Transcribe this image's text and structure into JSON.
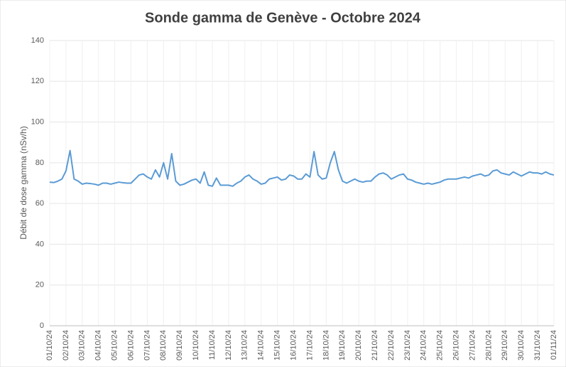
{
  "chart_data": {
    "type": "line",
    "title": "Sonde gamma de Genève - Octobre 2024",
    "y_label": "Débit de dose gamma (nSv/h)",
    "categories": [
      "01/10/24",
      null,
      null,
      null,
      "02/10/24",
      null,
      null,
      null,
      "03/10/24",
      null,
      null,
      null,
      "04/10/24",
      null,
      null,
      null,
      "05/10/24",
      null,
      null,
      null,
      "06/10/24",
      null,
      null,
      null,
      "07/10/24",
      null,
      null,
      null,
      "08/10/24",
      null,
      null,
      null,
      "09/10/24",
      null,
      null,
      null,
      "10/10/24",
      null,
      null,
      null,
      "11/10/24",
      null,
      null,
      null,
      "12/10/24",
      null,
      null,
      null,
      "13/10/24",
      null,
      null,
      null,
      "14/10/24",
      null,
      null,
      null,
      "15/10/24",
      null,
      null,
      null,
      "16/10/24",
      null,
      null,
      null,
      "17/10/24",
      null,
      null,
      null,
      "18/10/24",
      null,
      null,
      null,
      "19/10/24",
      null,
      null,
      null,
      "20/10/24",
      null,
      null,
      null,
      "21/10/24",
      null,
      null,
      null,
      "22/10/24",
      null,
      null,
      null,
      "23/10/24",
      null,
      null,
      null,
      "24/10/24",
      null,
      null,
      null,
      "25/10/24",
      null,
      null,
      null,
      "26/10/24",
      null,
      null,
      null,
      "27/10/24",
      null,
      null,
      null,
      "28/10/24",
      null,
      null,
      null,
      "29/10/24",
      null,
      null,
      null,
      "30/10/24",
      null,
      null,
      null,
      "31/10/24",
      null,
      null,
      null,
      "01/11/24"
    ],
    "series": [
      {
        "name": "Débit de dose gamma",
        "color": "#5b9bd5",
        "values": [
          70.5,
          70.3,
          71,
          72,
          76,
          86,
          72,
          71,
          69.5,
          70,
          69.8,
          69.5,
          69,
          70,
          70,
          69.5,
          70,
          70.5,
          70.2,
          70,
          70,
          72,
          74,
          74.5,
          73,
          72,
          76.5,
          73,
          80,
          72,
          84.5,
          71,
          69,
          69.5,
          70.5,
          71.5,
          72,
          70,
          75.5,
          69,
          68.5,
          72.5,
          69,
          69,
          69,
          68.5,
          70,
          71,
          73,
          74,
          72,
          71,
          69.5,
          70,
          72,
          72.5,
          73,
          71.5,
          72,
          74,
          73.5,
          72,
          72,
          74.5,
          73,
          85.5,
          74,
          72,
          72.5,
          80,
          85.5,
          76.5,
          71,
          70,
          71,
          72,
          71,
          70.5,
          71,
          71,
          73,
          74.5,
          75,
          74,
          72,
          73,
          74,
          74.5,
          72,
          71.5,
          70.5,
          70,
          69.5,
          70,
          69.5,
          70,
          70.5,
          71.5,
          72,
          72,
          72,
          72.5,
          73,
          72.5,
          73.5,
          74,
          74.5,
          73.5,
          74,
          76,
          76.5,
          75,
          74.5,
          74,
          75.5,
          74.5,
          73.5,
          74.5,
          75.5,
          75,
          75,
          74.5,
          75.5,
          74.5,
          74
        ]
      }
    ],
    "ylim": [
      0,
      140
    ],
    "yticks": [
      0,
      20,
      40,
      60,
      80,
      100,
      120,
      140
    ],
    "grid": true
  }
}
